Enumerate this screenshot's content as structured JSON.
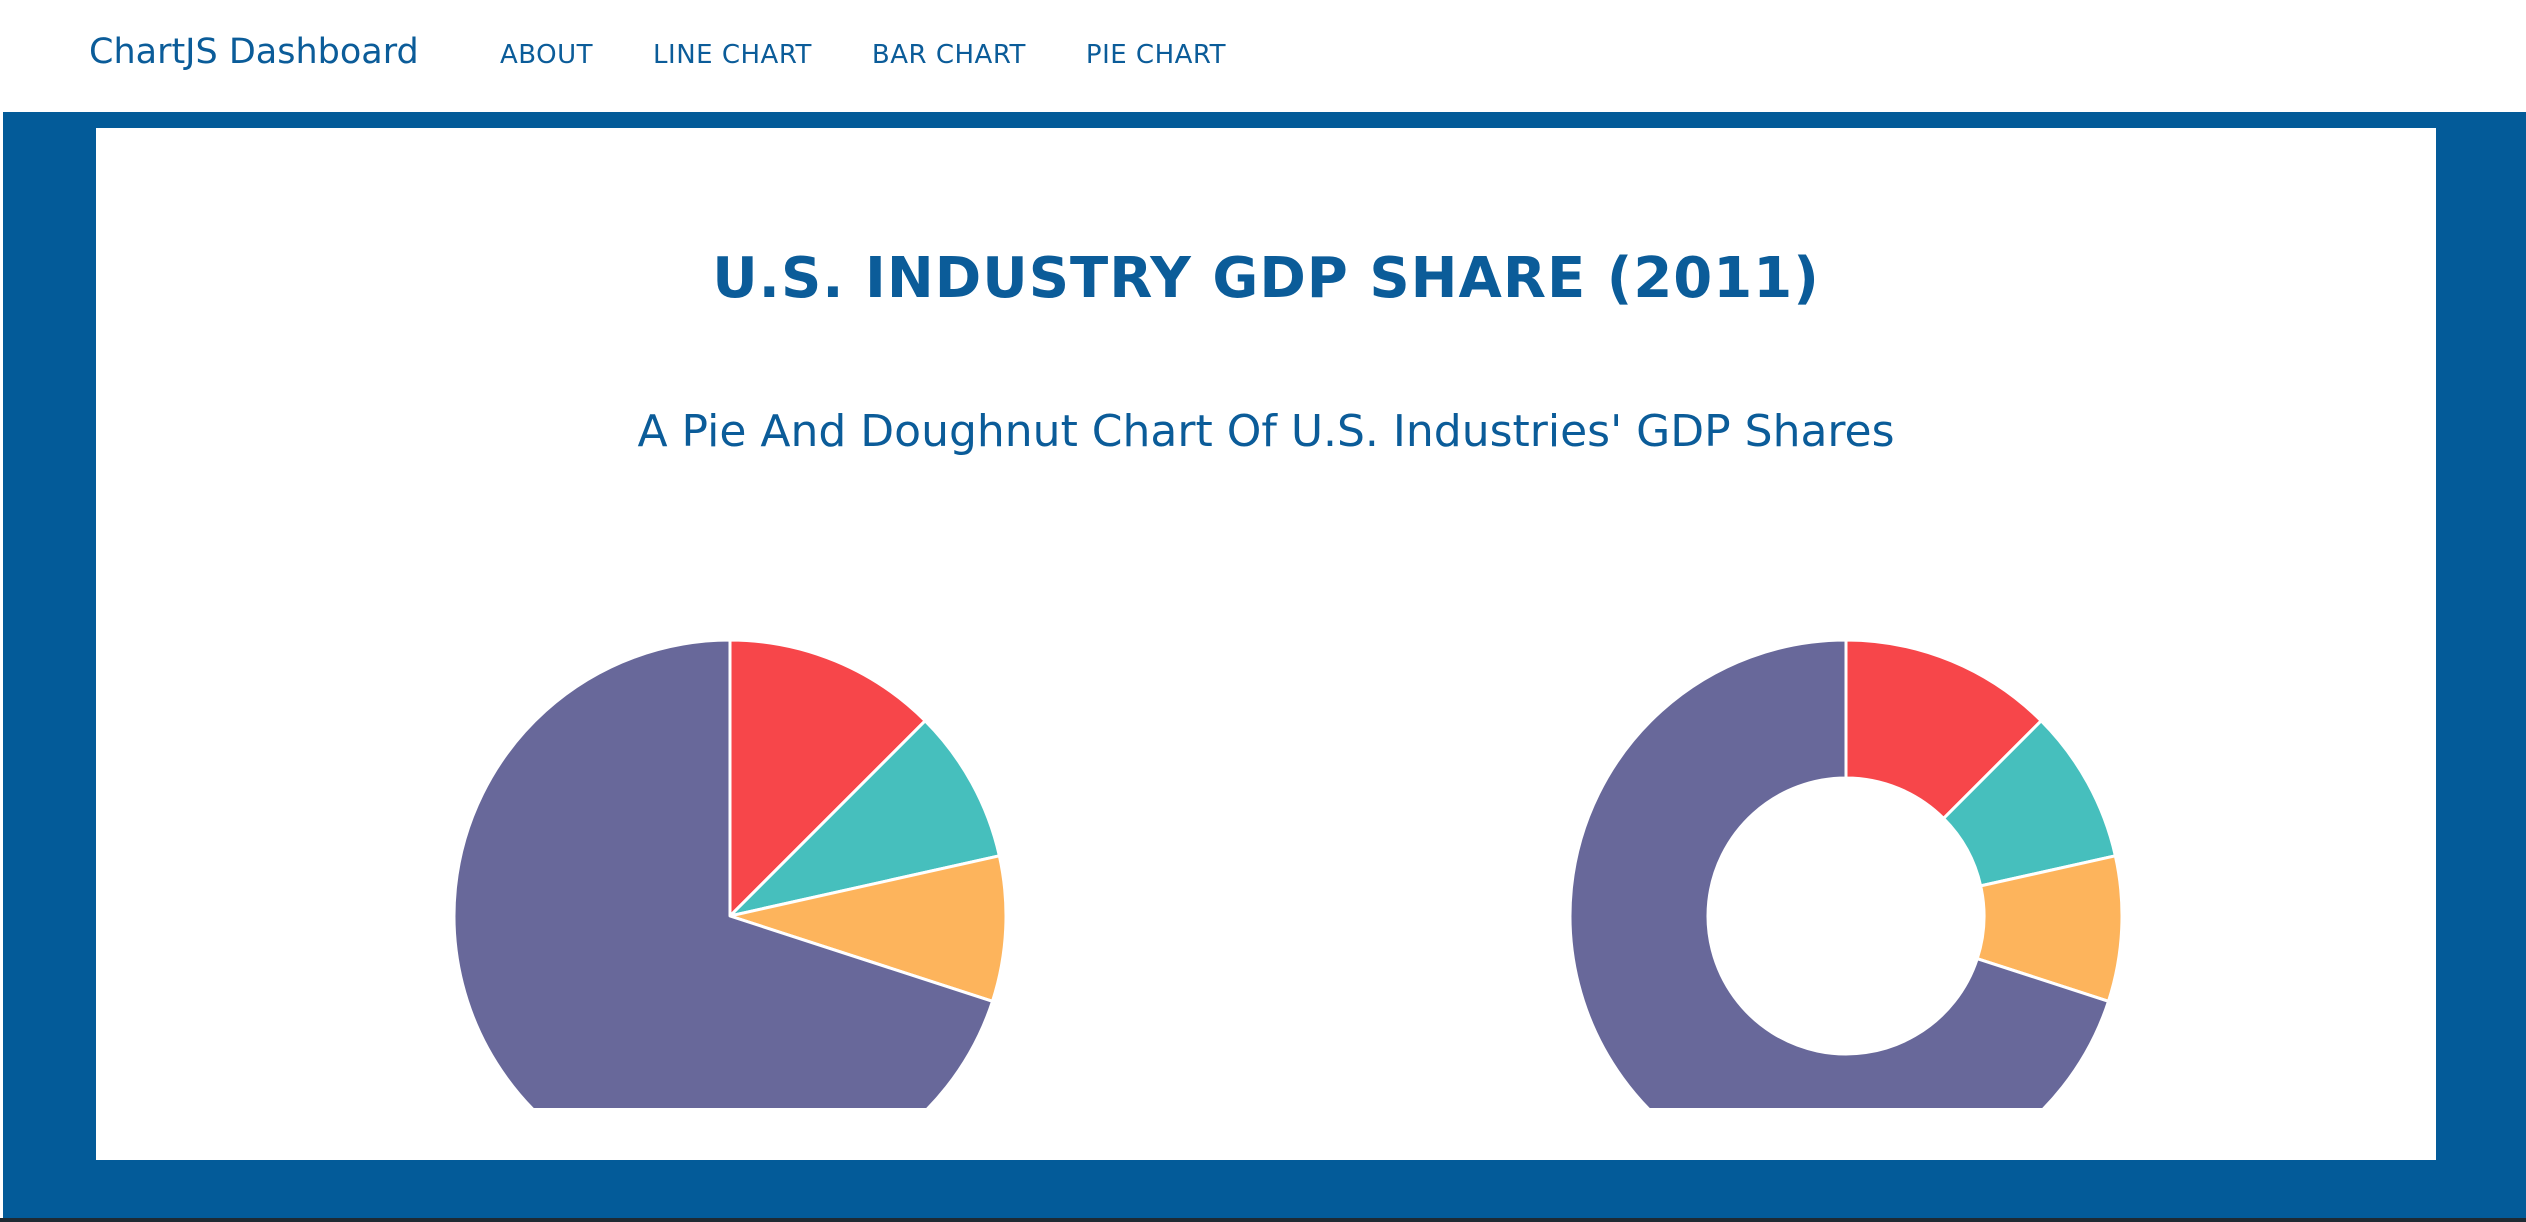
{
  "navbar": {
    "brand": "ChartJS Dashboard",
    "links": [
      "ABOUT",
      "LINE CHART",
      "BAR CHART",
      "PIE CHART"
    ]
  },
  "section": {
    "title": "U.S. INDUSTRY GDP SHARE (2011)",
    "subtitle": "A Pie And Doughnut Chart Of U.S. Industries' GDP Shares"
  },
  "chart_data": [
    {
      "type": "pie",
      "title": "",
      "values": [
        12.5,
        9.0,
        8.5,
        70.0
      ],
      "colors": [
        "#f7464a",
        "#46bfbd",
        "#fdb45c",
        "#68689a"
      ],
      "segment_stroke": "#ffffff"
    },
    {
      "type": "doughnut",
      "title": "",
      "values": [
        12.5,
        9.0,
        8.5,
        70.0
      ],
      "colors": [
        "#f7464a",
        "#46bfbd",
        "#fdb45c",
        "#68689a"
      ],
      "segment_stroke": "#ffffff",
      "cutout_ratio": 0.5
    }
  ],
  "colors": {
    "brand_blue": "#0b5c99",
    "band_blue": "#035b99"
  }
}
